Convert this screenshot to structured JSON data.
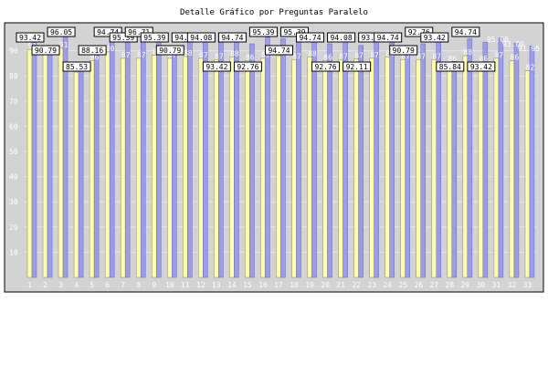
{
  "chart_data": {
    "type": "bar",
    "title": "Detalle Gráfico por Preguntas Paralelo",
    "categories": [
      "1",
      "2",
      "3",
      "4",
      "5",
      "6",
      "7",
      "8",
      "9",
      "10",
      "11",
      "12",
      "13",
      "14",
      "15",
      "16",
      "17",
      "18",
      "19",
      "20",
      "21",
      "22",
      "23",
      "24",
      "25",
      "26",
      "27",
      "28",
      "29",
      "30",
      "31",
      "32",
      "33"
    ],
    "series": [
      {
        "values": [
          93.42,
          90.79,
          96.05,
          85.53,
          88.16,
          94.74,
          95.39,
          96.71,
          95.39,
          90.79,
          94.74,
          94.08,
          93.42,
          94.74,
          92.76,
          95.39,
          94.74,
          95.39,
          94.74,
          92.76,
          94.08,
          92.11,
          93.42,
          94.74,
          90.79,
          92.76,
          93.42,
          85.84,
          94.74,
          93.42,
          95.0,
          93.0,
          91.95
        ]
      },
      {
        "values": [
          90.5,
          89.0,
          91.0,
          81.5,
          86.0,
          89.5,
          87.0,
          87.0,
          88.2,
          87.0,
          87.7,
          87.0,
          86.5,
          87.5,
          86.0,
          87.0,
          88.0,
          86.5,
          87.5,
          86.0,
          86.5,
          86.7,
          87.0,
          87.5,
          86.5,
          86.5,
          86.5,
          85.5,
          88.0,
          85.5,
          87.0,
          86.0,
          82.0
        ]
      }
    ],
    "ylim": [
      0,
      100
    ],
    "yticks": [
      10,
      20,
      30,
      40,
      50,
      60,
      70,
      80,
      90
    ],
    "grid": true,
    "colors": {
      "series0": "#9b9bf0",
      "series1": "#ffffa8",
      "plot_bg": "#d3d3d3",
      "grid": "#e6e6e6",
      "tick_text": "#ffffff",
      "box_bg": "#ffffff",
      "box_border": "#000000"
    },
    "label_rows": [
      1,
      2,
      0,
      3,
      2,
      0,
      1,
      0,
      1,
      2,
      1,
      1,
      3,
      1,
      3,
      0,
      2,
      0,
      1,
      3,
      1,
      3,
      1,
      1,
      2,
      0,
      1,
      3,
      0,
      3,
      -1,
      -1,
      -1
    ]
  }
}
